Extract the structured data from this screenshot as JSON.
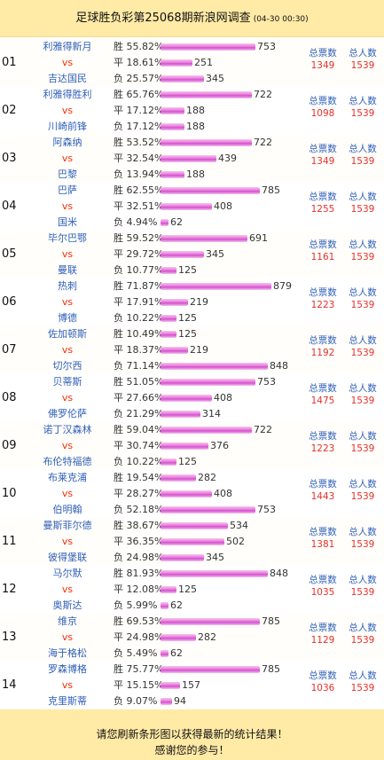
{
  "header": {
    "title": "足球胜负彩第25068期新浪网调查",
    "time": "(04-30 00:30)"
  },
  "labels": {
    "win": "胜",
    "draw": "平",
    "lose": "负",
    "vs": "vs",
    "votes": "总票数",
    "total": "总人数"
  },
  "matches": [
    {
      "idx": "01",
      "home": "利雅得新月",
      "away": "吉达国民",
      "win": {
        "pct": "55.82%",
        "count": "753"
      },
      "draw": {
        "pct": "18.61%",
        "count": "251"
      },
      "lose": {
        "pct": "25.57%",
        "count": "345"
      },
      "votes": "1349",
      "total": "1539"
    },
    {
      "idx": "02",
      "home": "利雅得胜利",
      "away": "川崎前锋",
      "win": {
        "pct": "65.76%",
        "count": "722"
      },
      "draw": {
        "pct": "17.12%",
        "count": "188"
      },
      "lose": {
        "pct": "17.12%",
        "count": "188"
      },
      "votes": "1098",
      "total": "1539"
    },
    {
      "idx": "03",
      "home": "阿森纳",
      "away": "巴黎",
      "win": {
        "pct": "53.52%",
        "count": "722"
      },
      "draw": {
        "pct": "32.54%",
        "count": "439"
      },
      "lose": {
        "pct": "13.94%",
        "count": "188"
      },
      "votes": "1349",
      "total": "1539"
    },
    {
      "idx": "04",
      "home": "巴萨",
      "away": "国米",
      "win": {
        "pct": "62.55%",
        "count": "785"
      },
      "draw": {
        "pct": "32.51%",
        "count": "408"
      },
      "lose": {
        "pct": "4.94%",
        "count": "62"
      },
      "votes": "1255",
      "total": "1539"
    },
    {
      "idx": "05",
      "home": "毕尔巴鄂",
      "away": "曼联",
      "win": {
        "pct": "59.52%",
        "count": "691"
      },
      "draw": {
        "pct": "29.72%",
        "count": "345"
      },
      "lose": {
        "pct": "10.77%",
        "count": "125"
      },
      "votes": "1161",
      "total": "1539"
    },
    {
      "idx": "06",
      "home": "热刺",
      "away": "博德",
      "win": {
        "pct": "71.87%",
        "count": "879"
      },
      "draw": {
        "pct": "17.91%",
        "count": "219"
      },
      "lose": {
        "pct": "10.22%",
        "count": "125"
      },
      "votes": "1223",
      "total": "1539"
    },
    {
      "idx": "07",
      "home": "佐加顿斯",
      "away": "切尔西",
      "win": {
        "pct": "10.49%",
        "count": "125"
      },
      "draw": {
        "pct": "18.37%",
        "count": "219"
      },
      "lose": {
        "pct": "71.14%",
        "count": "848"
      },
      "votes": "1192",
      "total": "1539"
    },
    {
      "idx": "08",
      "home": "贝蒂斯",
      "away": "佛罗伦萨",
      "win": {
        "pct": "51.05%",
        "count": "753"
      },
      "draw": {
        "pct": "27.66%",
        "count": "408"
      },
      "lose": {
        "pct": "21.29%",
        "count": "314"
      },
      "votes": "1475",
      "total": "1539"
    },
    {
      "idx": "09",
      "home": "诺丁汉森林",
      "away": "布伦特福德",
      "win": {
        "pct": "59.04%",
        "count": "722"
      },
      "draw": {
        "pct": "30.74%",
        "count": "376"
      },
      "lose": {
        "pct": "10.22%",
        "count": "125"
      },
      "votes": "1223",
      "total": "1539"
    },
    {
      "idx": "10",
      "home": "布莱克浦",
      "away": "伯明翰",
      "win": {
        "pct": "19.54%",
        "count": "282"
      },
      "draw": {
        "pct": "28.27%",
        "count": "408"
      },
      "lose": {
        "pct": "52.18%",
        "count": "753"
      },
      "votes": "1443",
      "total": "1539"
    },
    {
      "idx": "11",
      "home": "曼斯菲尔德",
      "away": "彼得堡联",
      "win": {
        "pct": "38.67%",
        "count": "534"
      },
      "draw": {
        "pct": "36.35%",
        "count": "502"
      },
      "lose": {
        "pct": "24.98%",
        "count": "345"
      },
      "votes": "1381",
      "total": "1539"
    },
    {
      "idx": "12",
      "home": "马尔默",
      "away": "奥斯达",
      "win": {
        "pct": "81.93%",
        "count": "848"
      },
      "draw": {
        "pct": "12.08%",
        "count": "125"
      },
      "lose": {
        "pct": "5.99%",
        "count": "62"
      },
      "votes": "1035",
      "total": "1539"
    },
    {
      "idx": "13",
      "home": "维京",
      "away": "海于格松",
      "win": {
        "pct": "69.53%",
        "count": "785"
      },
      "draw": {
        "pct": "24.98%",
        "count": "282"
      },
      "lose": {
        "pct": "5.49%",
        "count": "62"
      },
      "votes": "1129",
      "total": "1539"
    },
    {
      "idx": "14",
      "home": "罗森博格",
      "away": "克里斯蒂",
      "win": {
        "pct": "75.77%",
        "count": "785"
      },
      "draw": {
        "pct": "15.15%",
        "count": "157"
      },
      "lose": {
        "pct": "9.07%",
        "count": "94"
      },
      "votes": "1036",
      "total": "1539"
    }
  ],
  "footer": {
    "line1": "请您刷新条形图以获得最新的统计结果！",
    "line2": "感谢您的参与！"
  },
  "colors": {
    "header_bg": "#ffeaa6",
    "team": "#2f5fb8",
    "vs": "#ff2a00",
    "number": "#e7302b",
    "bar": "#d64fd0"
  }
}
